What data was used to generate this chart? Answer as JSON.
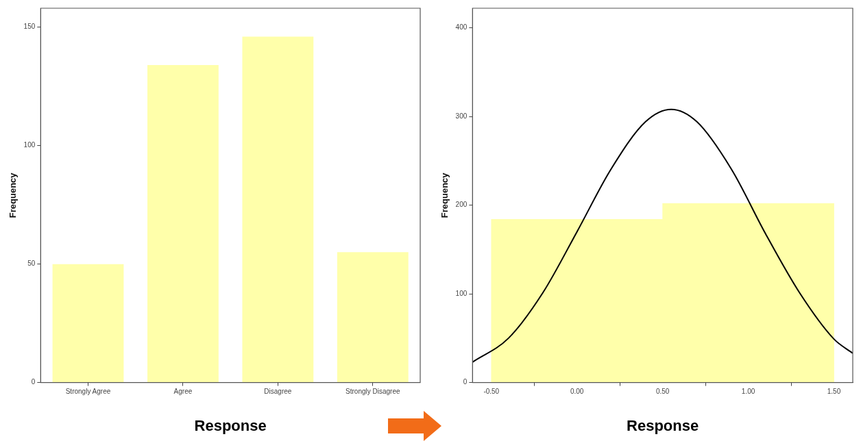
{
  "chart_data": [
    {
      "type": "bar",
      "categories": [
        "Strongly Agree",
        "Agree",
        "Disagree",
        "Strongly Disagree"
      ],
      "values": [
        50,
        134,
        146,
        55
      ],
      "color": "#ffffaa",
      "xlabel": "Response",
      "ylabel": "Frequency",
      "ylim": [
        0,
        158
      ],
      "yticks": [
        0,
        50,
        100,
        150
      ],
      "grid": false,
      "legend": false
    },
    {
      "type": "histogram",
      "bins": [
        -0.5,
        0.5,
        1.5
      ],
      "values": [
        184,
        202
      ],
      "color": "#ffffaa",
      "xlabel": "Response",
      "ylabel": "Frequency",
      "xlim": [
        -0.61,
        1.61
      ],
      "xticks": [
        {
          "value": -0.5,
          "label": "-0.50"
        },
        {
          "value": 0,
          "label": "0.00"
        },
        {
          "value": 0.5,
          "label": "0.50"
        },
        {
          "value": 1,
          "label": "1.00"
        },
        {
          "value": 1.5,
          "label": "1.50"
        }
      ],
      "ylim": [
        0,
        422
      ],
      "yticks": [
        0,
        100,
        200,
        300,
        400
      ],
      "grid": false,
      "legend": false,
      "series": [
        {
          "type": "line",
          "color": "#000000",
          "marker": "none",
          "x": [
            -0.61,
            -0.4,
            -0.2,
            0,
            0.2,
            0.4,
            0.55,
            0.7,
            0.9,
            1.1,
            1.3,
            1.5,
            1.61
          ],
          "values": [
            23,
            50,
            101,
            170,
            241,
            294,
            308,
            294,
            241,
            168,
            101,
            49,
            33
          ]
        }
      ]
    }
  ]
}
